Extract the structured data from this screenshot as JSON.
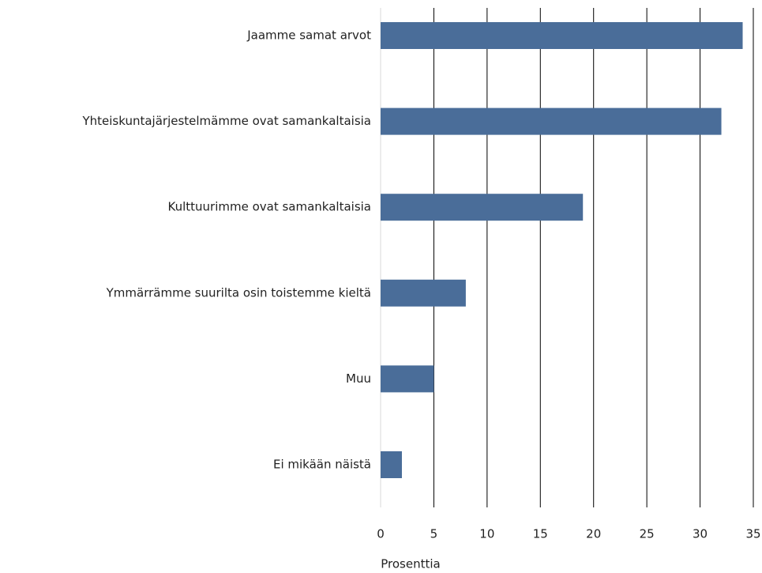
{
  "chart_data": {
    "type": "barh",
    "categories": [
      "Jaamme samat arvot",
      "Yhteiskuntajärjestelmämme ovat samankaltaisia",
      "Kulttuurimme ovat samankaltaisia",
      "Ymmärrämme suurilta osin toistemme kieltä",
      "Muu",
      "Ei mikään näistä"
    ],
    "values": [
      34,
      32,
      19,
      8,
      5,
      2
    ],
    "color": "#4a6d99",
    "xlim": [
      0,
      35
    ],
    "xticks": [
      0,
      5,
      10,
      15,
      20,
      25,
      30,
      35
    ],
    "xlabel": "Prosenttia",
    "grid": true
  }
}
